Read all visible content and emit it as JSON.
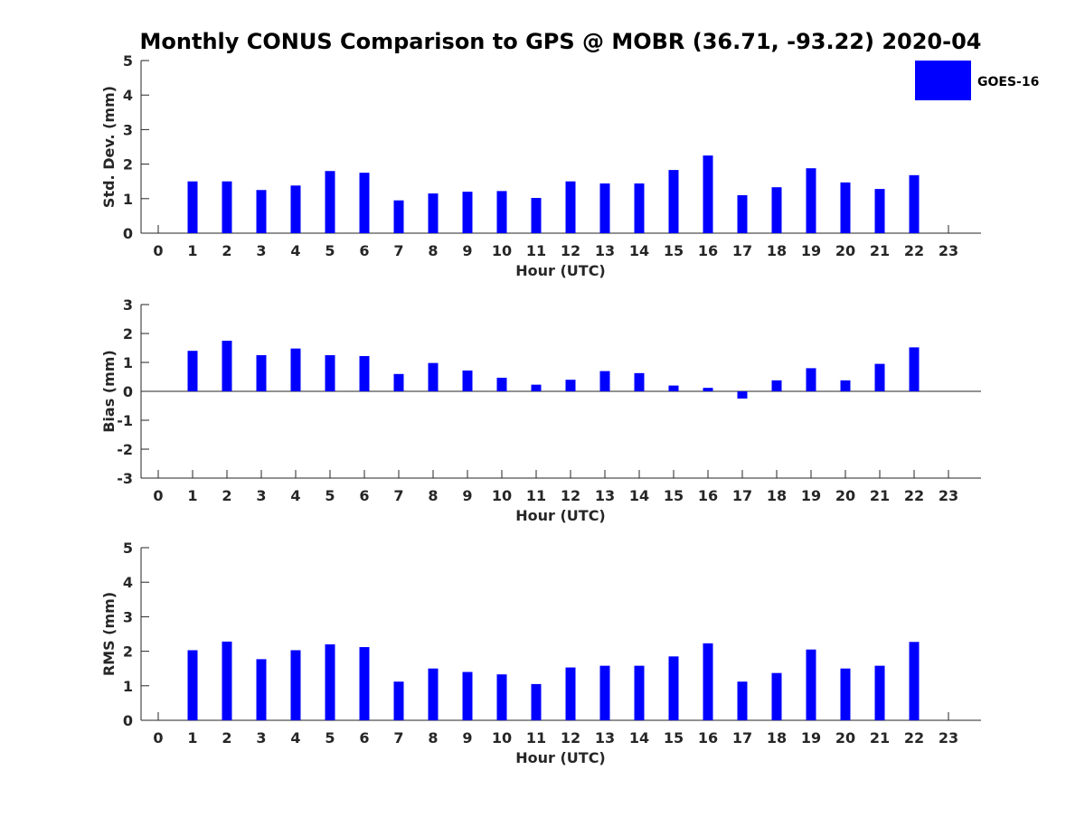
{
  "chart_data": {
    "type": "bar",
    "title": "Monthly CONUS Comparison to GPS @ MOBR (36.71, -93.22) 2020-04",
    "legend": {
      "label": "GOES-16",
      "color": "#0000ff",
      "placement": "top-right"
    },
    "panels": [
      {
        "id": "std",
        "ylabel": "Std. Dev. (mm)",
        "xlabel": "Hour (UTC)",
        "ylim": [
          0,
          5
        ],
        "yticks": [
          0,
          1,
          2,
          3,
          4,
          5
        ],
        "categories": [
          0,
          1,
          2,
          3,
          4,
          5,
          6,
          7,
          8,
          9,
          10,
          11,
          12,
          13,
          14,
          15,
          16,
          17,
          18,
          19,
          20,
          21,
          22,
          23
        ],
        "values": [
          null,
          1.5,
          1.5,
          1.25,
          1.38,
          1.8,
          1.75,
          0.95,
          1.15,
          1.2,
          1.22,
          1.02,
          1.5,
          1.44,
          1.44,
          1.83,
          2.25,
          1.1,
          1.33,
          1.88,
          1.47,
          1.28,
          1.68,
          null
        ]
      },
      {
        "id": "bias",
        "ylabel": "Bias (mm)",
        "xlabel": "Hour (UTC)",
        "ylim": [
          -3,
          3
        ],
        "yticks": [
          -3,
          -2,
          -1,
          0,
          1,
          2,
          3
        ],
        "categories": [
          0,
          1,
          2,
          3,
          4,
          5,
          6,
          7,
          8,
          9,
          10,
          11,
          12,
          13,
          14,
          15,
          16,
          17,
          18,
          19,
          20,
          21,
          22,
          23
        ],
        "values": [
          null,
          1.4,
          1.75,
          1.25,
          1.48,
          1.25,
          1.22,
          0.6,
          0.98,
          0.72,
          0.47,
          0.23,
          0.4,
          0.7,
          0.63,
          0.2,
          0.12,
          -0.25,
          0.38,
          0.8,
          0.38,
          0.95,
          1.52,
          null
        ]
      },
      {
        "id": "rms",
        "ylabel": "RMS (mm)",
        "xlabel": "Hour (UTC)",
        "ylim": [
          0,
          5
        ],
        "yticks": [
          0,
          1,
          2,
          3,
          4,
          5
        ],
        "categories": [
          0,
          1,
          2,
          3,
          4,
          5,
          6,
          7,
          8,
          9,
          10,
          11,
          12,
          13,
          14,
          15,
          16,
          17,
          18,
          19,
          20,
          21,
          22,
          23
        ],
        "values": [
          null,
          2.03,
          2.28,
          1.77,
          2.03,
          2.2,
          2.12,
          1.12,
          1.5,
          1.4,
          1.33,
          1.05,
          1.53,
          1.58,
          1.58,
          1.85,
          2.23,
          1.12,
          1.37,
          2.05,
          1.5,
          1.58,
          2.27,
          null
        ]
      }
    ]
  }
}
